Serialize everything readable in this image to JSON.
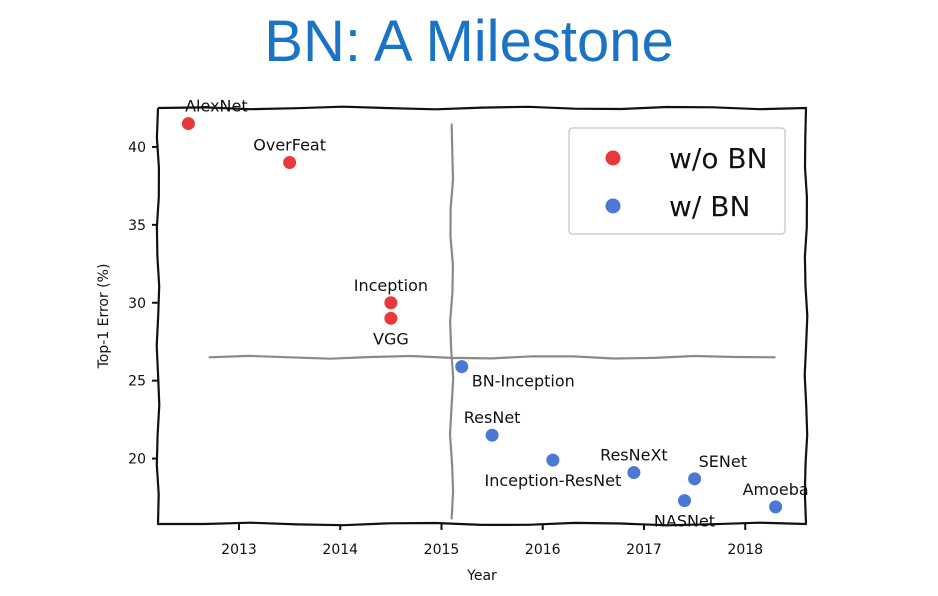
{
  "slide": {
    "title": "BN: A Milestone"
  },
  "chart_data": {
    "type": "scatter",
    "xlabel": "Year",
    "ylabel": "Top-1 Error (%)",
    "xlim": [
      2012.2,
      2018.6
    ],
    "ylim": [
      15.8,
      42.5
    ],
    "xticks": [
      2013,
      2014,
      2015,
      2016,
      2017,
      2018
    ],
    "yticks": [
      20,
      25,
      30,
      35,
      40
    ],
    "grid": false,
    "legend_position": "top-right",
    "divider_lines": {
      "vertical_x": 2015.1,
      "horizontal_y": 26.5
    },
    "series": [
      {
        "name": "w/o BN",
        "color": "#e8383a",
        "points": [
          {
            "label": "AlexNet",
            "x": 2012.5,
            "y": 41.5,
            "label_pos": "above"
          },
          {
            "label": "OverFeat",
            "x": 2013.5,
            "y": 39.0,
            "label_pos": "above"
          },
          {
            "label": "Inception",
            "x": 2014.5,
            "y": 30.0,
            "label_pos": "above"
          },
          {
            "label": "VGG",
            "x": 2014.5,
            "y": 29.0,
            "label_pos": "below"
          }
        ]
      },
      {
        "name": "w/ BN",
        "color": "#4a78d3",
        "points": [
          {
            "label": "BN-Inception",
            "x": 2015.2,
            "y": 25.9,
            "label_pos": "below-right"
          },
          {
            "label": "ResNet",
            "x": 2015.5,
            "y": 21.5,
            "label_pos": "above"
          },
          {
            "label": "Inception-ResNet",
            "x": 2016.1,
            "y": 19.9,
            "label_pos": "below"
          },
          {
            "label": "ResNeXt",
            "x": 2016.9,
            "y": 19.1,
            "label_pos": "above"
          },
          {
            "label": "SENet",
            "x": 2017.5,
            "y": 18.7,
            "label_pos": "above-right"
          },
          {
            "label": "NASNet",
            "x": 2017.4,
            "y": 17.3,
            "label_pos": "below"
          },
          {
            "label": "Amoeba",
            "x": 2018.3,
            "y": 16.9,
            "label_pos": "above"
          }
        ]
      }
    ]
  }
}
